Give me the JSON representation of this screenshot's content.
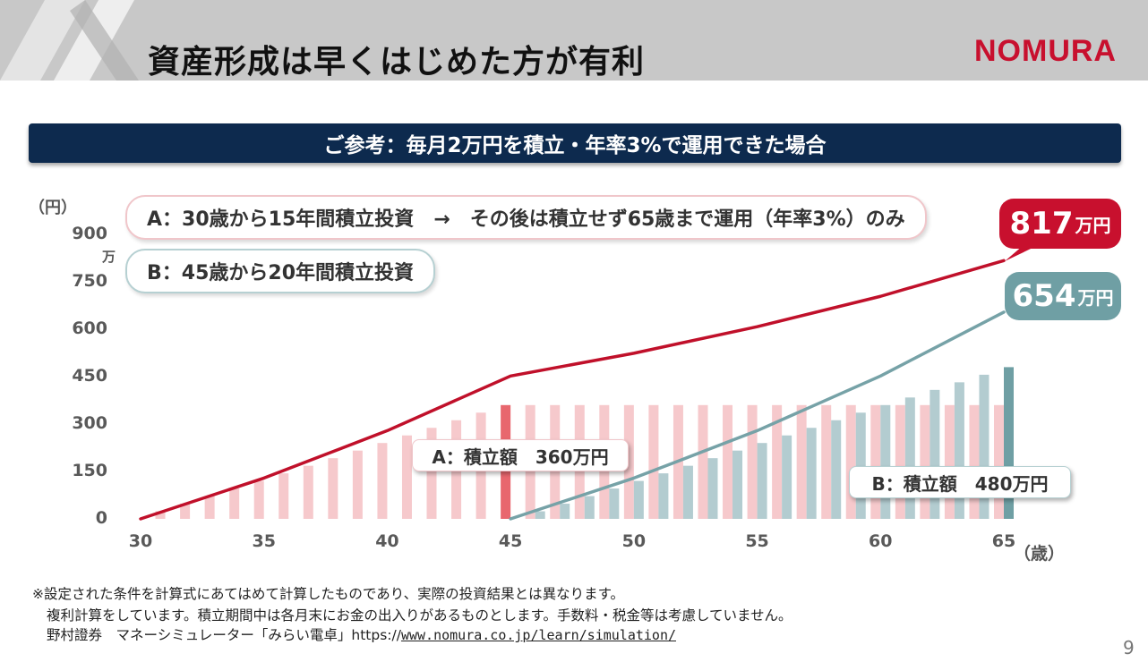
{
  "header": {
    "title": "資産形成は早くはじめた方が有利",
    "logo": "NOMURA"
  },
  "banner": {
    "text": "ご参考：毎月2万円を積立・年率3%で運用できた場合"
  },
  "colors": {
    "a_line": "#c0102a",
    "a_bar": "#f6c9cc",
    "a_bar_highlight": "#e8676e",
    "b_line": "#76a2a7",
    "b_bar": "#b3ccd0",
    "b_bar_highlight": "#6f9fa4"
  },
  "callouts": {
    "a": "A：30歳から15年間積立投資　→　その後は積立せず65歳まで運用（年率3%）のみ",
    "b": "B：45歳から20年間積立投資"
  },
  "labels": {
    "a_total": "A：積立額　360万円",
    "b_total": "B：積立額　480万円"
  },
  "final": {
    "a_value": "817",
    "b_value": "654",
    "unit": "万円"
  },
  "axis": {
    "y_unit": "（円）",
    "y_unit2": "万",
    "x_unit": "（歳）"
  },
  "chart_data": {
    "type": "bar",
    "x": [
      30,
      31,
      32,
      33,
      34,
      35,
      36,
      37,
      38,
      39,
      40,
      41,
      42,
      43,
      44,
      45,
      46,
      47,
      48,
      49,
      50,
      51,
      52,
      53,
      54,
      55,
      56,
      57,
      58,
      59,
      60,
      61,
      62,
      63,
      64,
      65
    ],
    "xlim": [
      30,
      65
    ],
    "ylim": [
      0,
      900
    ],
    "y_ticks": [
      0,
      150,
      300,
      450,
      600,
      750,
      900
    ],
    "x_ticks": [
      30,
      35,
      40,
      45,
      50,
      55,
      60,
      65
    ],
    "series": [
      {
        "name": "A：積立額",
        "type": "bar",
        "values": [
          0,
          24,
          48,
          72,
          96,
          120,
          144,
          168,
          192,
          216,
          240,
          264,
          288,
          312,
          336,
          360,
          360,
          360,
          360,
          360,
          360,
          360,
          360,
          360,
          360,
          360,
          360,
          360,
          360,
          360,
          360,
          360,
          360,
          360,
          360,
          360
        ]
      },
      {
        "name": "B：積立額",
        "type": "bar",
        "values": [
          0,
          0,
          0,
          0,
          0,
          0,
          0,
          0,
          0,
          0,
          0,
          0,
          0,
          0,
          0,
          0,
          24,
          48,
          72,
          96,
          120,
          144,
          168,
          192,
          216,
          240,
          264,
          288,
          312,
          336,
          360,
          384,
          408,
          432,
          456,
          480
        ]
      },
      {
        "name": "A",
        "type": "line",
        "x": [
          30,
          35,
          40,
          45,
          50,
          55,
          60,
          65
        ],
        "values": [
          0,
          129,
          279,
          452,
          524,
          608,
          704,
          817
        ]
      },
      {
        "name": "B",
        "type": "line",
        "x": [
          45,
          50,
          55,
          60,
          65
        ],
        "values": [
          0,
          129,
          279,
          452,
          654
        ]
      }
    ]
  },
  "footnotes": {
    "line1": "※設定された条件を計算式にあてはめて計算したものであり、実際の投資結果とは異なります。",
    "line2": "複利計算をしています。積立期間中は各月末にお金の出入りがあるものとします。手数料・税金等は考慮していません。",
    "line3_prefix": "野村證券　マネーシミュレーター「みらい電卓」https://",
    "line3_url": "www.nomura.co.jp/learn/simulation/"
  },
  "page_number": "9"
}
